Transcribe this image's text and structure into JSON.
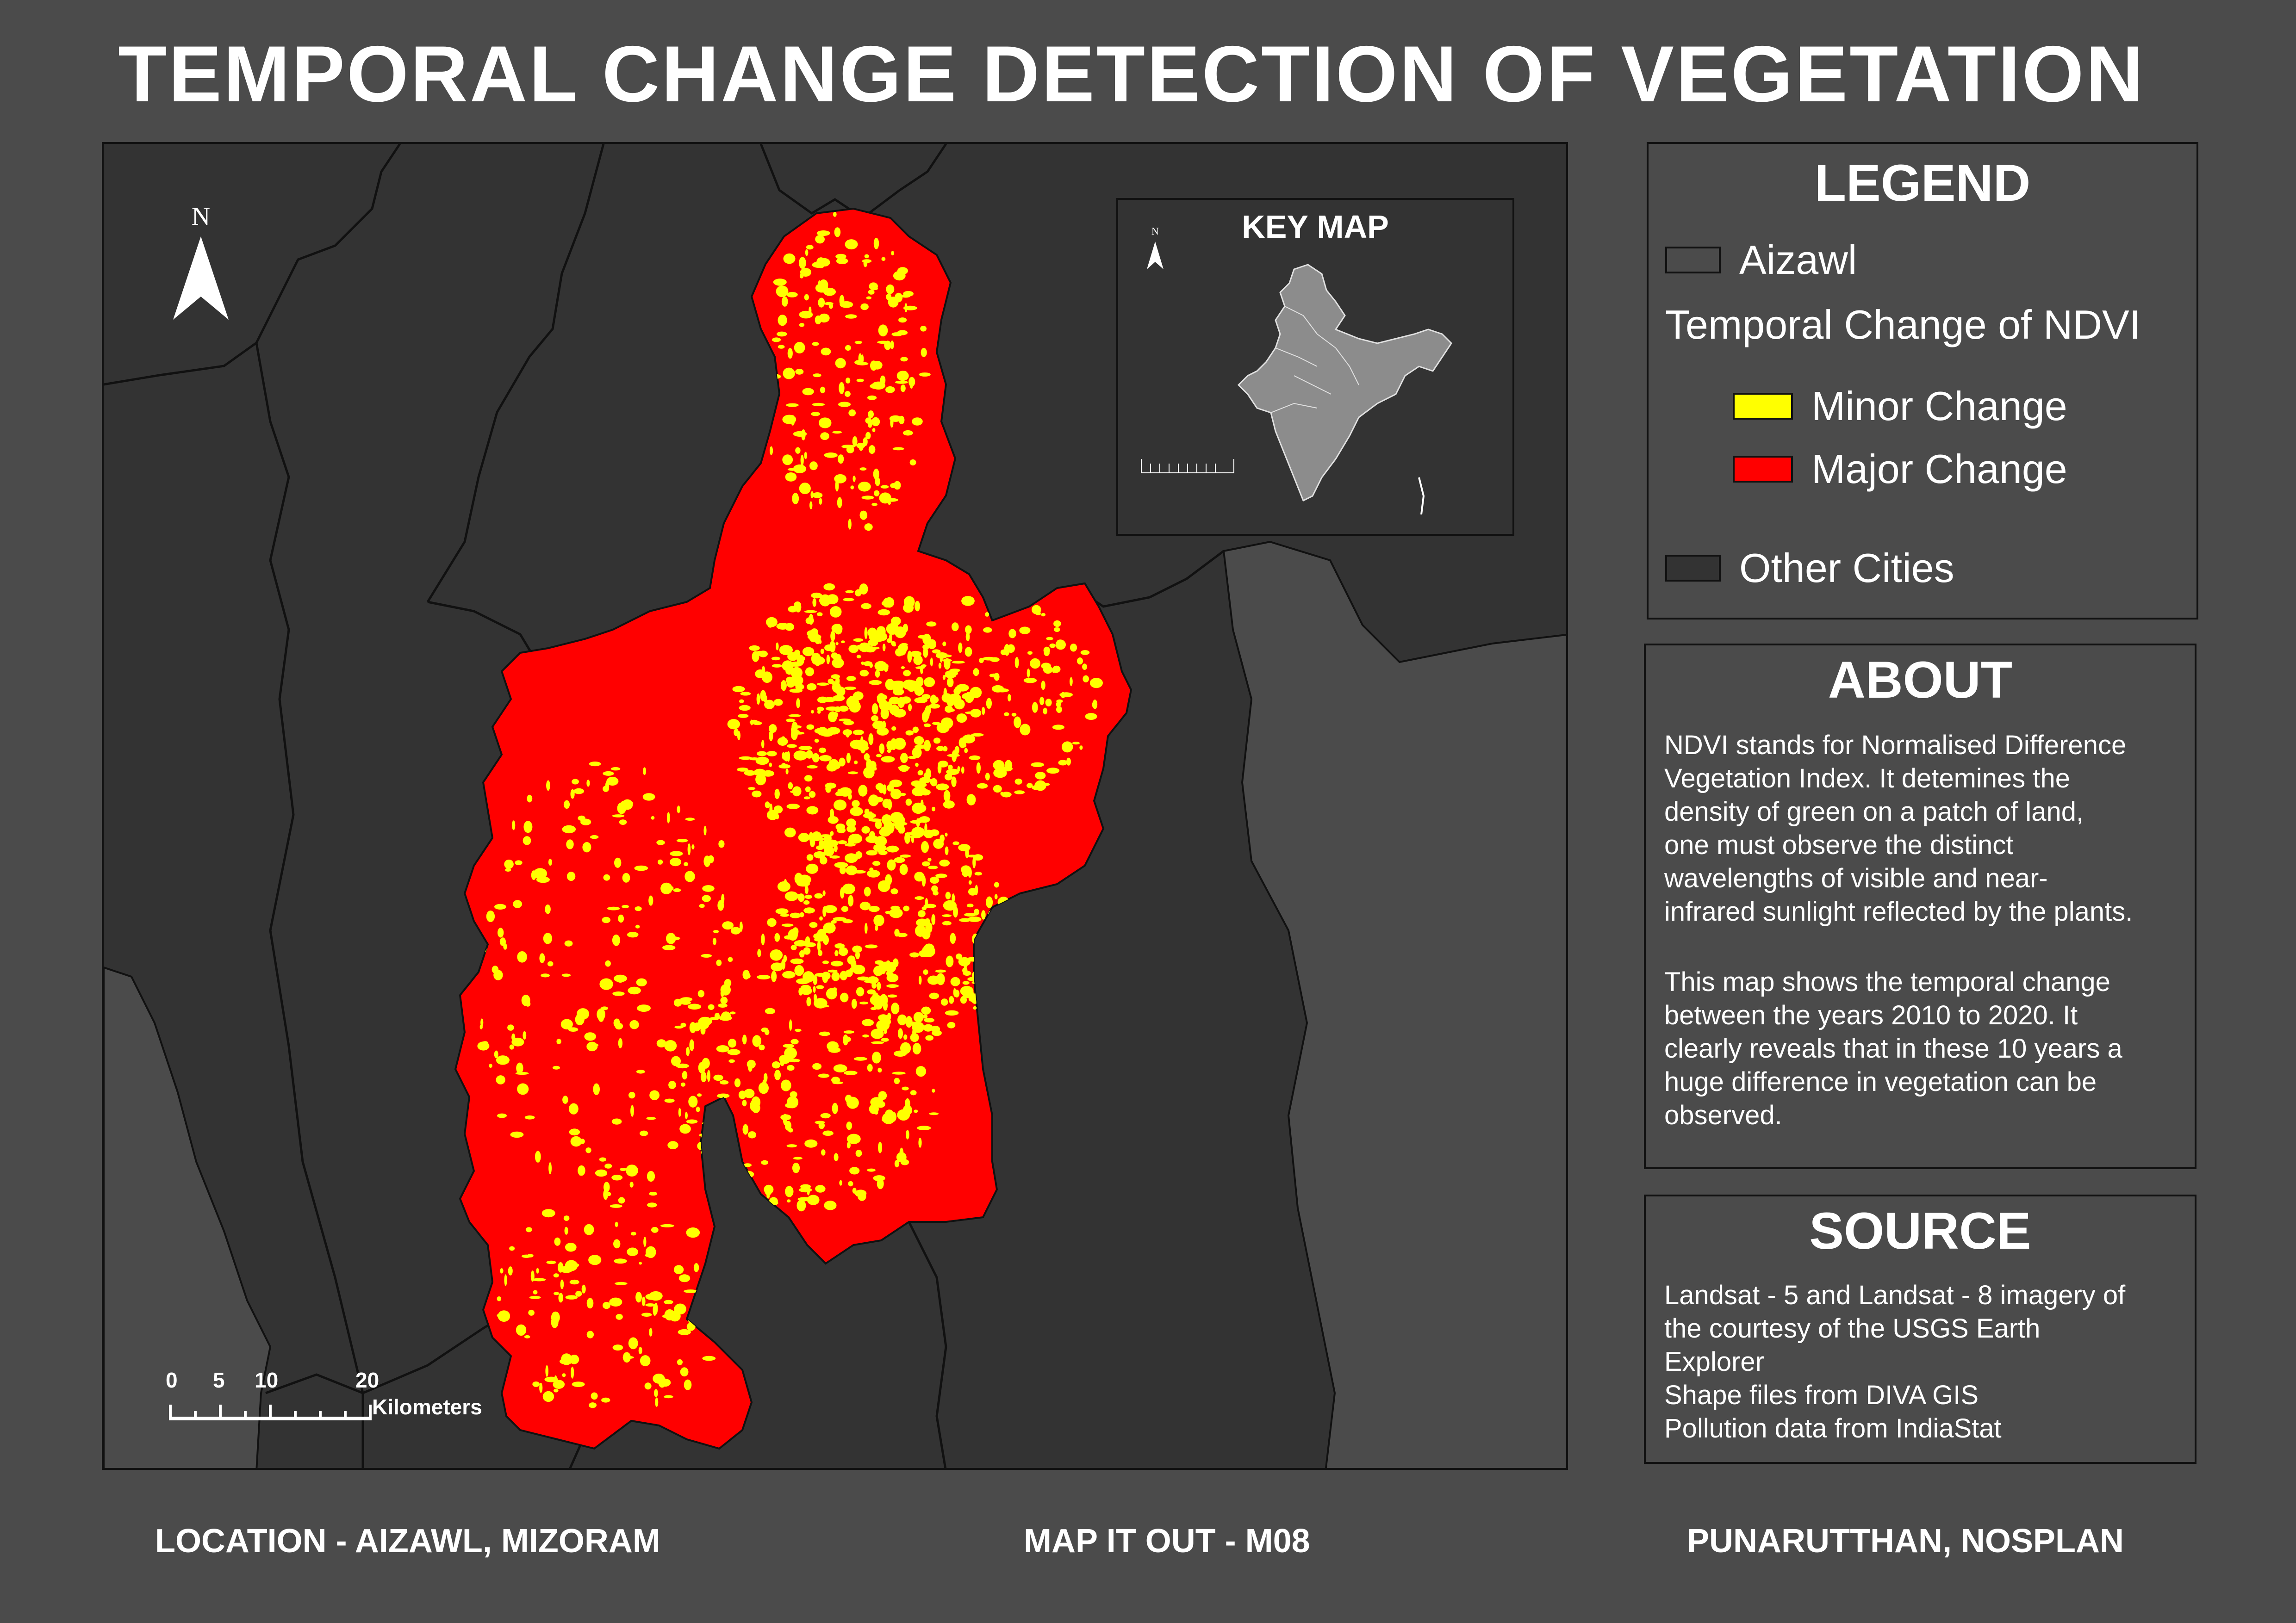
{
  "title": "TEMPORAL CHANGE DETECTION OF VEGETATION",
  "map": {
    "north_label": "N",
    "scale": {
      "ticks": [
        "0",
        "5",
        "10",
        "20"
      ],
      "unit": "Kilometers"
    },
    "key_map": {
      "title": "KEY MAP",
      "north_label": "N"
    },
    "colors": {
      "background": "#4b4b4b",
      "other_cities": "#333333",
      "minor_change": "#ffff00",
      "major_change": "#ff0000",
      "india_fill": "#8c8c8c"
    }
  },
  "legend": {
    "title": "LEGEND",
    "aizawl_label": "Aizawl",
    "subtitle": "Temporal Change of NDVI",
    "minor_label": "Minor Change",
    "major_label": "Major Change",
    "other_label": "Other Cities"
  },
  "about": {
    "title": "ABOUT",
    "para1": [
      "NDVI stands for Normalised Difference",
      "Vegetation Index. It detemines the",
      "density of green on a patch of land,",
      "one must observe the distinct",
      "wavelengths of visible and near-",
      "infrared sunlight reflected by the plants."
    ],
    "para2": [
      "This map shows the temporal change",
      "between the years 2010 to 2020. It",
      "clearly reveals that in these 10 years a",
      "huge difference in vegetation can be",
      "observed."
    ]
  },
  "source": {
    "title": "SOURCE",
    "lines": [
      "Landsat - 5 and Landsat - 8 imagery of",
      "the courtesy of the USGS Earth",
      "Explorer",
      "Shape files from DIVA GIS",
      "Pollution data from IndiaStat"
    ]
  },
  "footer": {
    "location": "LOCATION - AIZAWL, MIZORAM",
    "project": "MAP IT OUT - M08",
    "org": "PUNARUTTHAN, NOSPLAN"
  }
}
